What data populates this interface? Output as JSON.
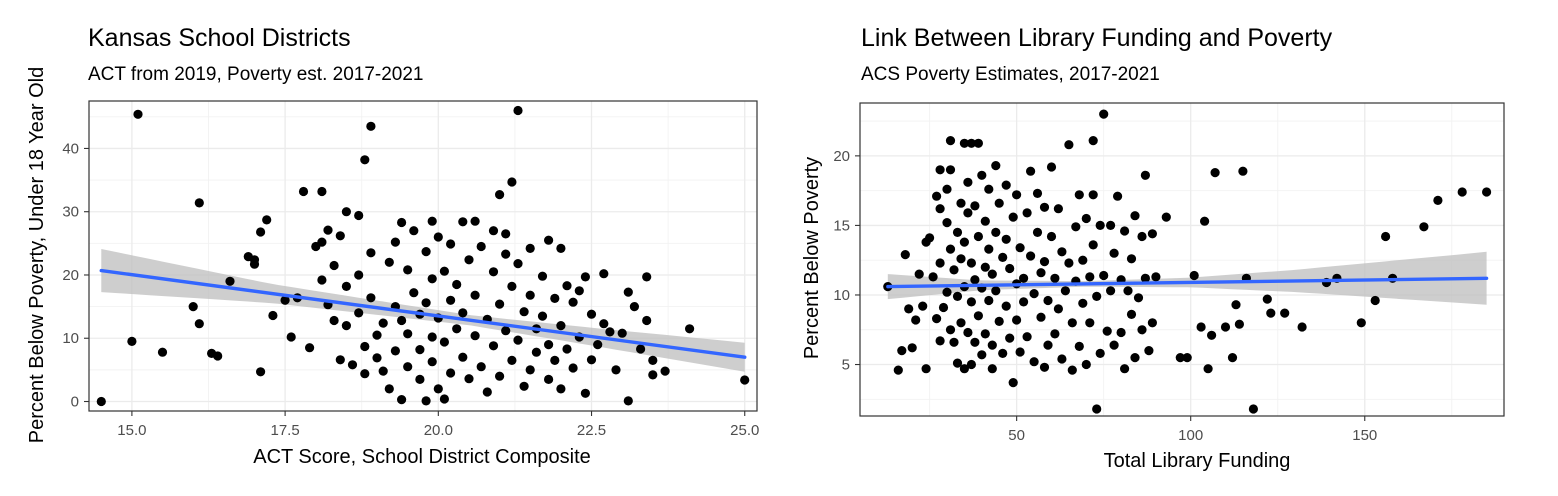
{
  "chart_data": [
    {
      "type": "scatter",
      "title": "Kansas School Districts",
      "subtitle": "ACT from 2019, Poverty est. 2017-2021",
      "xlabel": "ACT Score, School District Composite",
      "ylabel": "Percent Below Poverty, Under 18 Year Old",
      "xlim": [
        14.3,
        25.2
      ],
      "ylim": [
        -1.5,
        47.5
      ],
      "xticks": [
        15.0,
        17.5,
        20.0,
        22.5,
        25.0
      ],
      "xtick_labels": [
        "15.0",
        "17.5",
        "20.0",
        "22.5",
        "25.0"
      ],
      "yticks": [
        0,
        10,
        20,
        30,
        40
      ],
      "ytick_labels": [
        "0",
        "10",
        "20",
        "30",
        "40"
      ],
      "grid": true,
      "point_color": "#000000",
      "trend_color": "#3366FF",
      "band_color": "#BEBEBE",
      "trend": {
        "x": [
          14.5,
          25.0
        ],
        "y": [
          20.7,
          7.0
        ]
      },
      "band_halfwidth": {
        "x": [
          14.5,
          17.3,
          20.5,
          22.5,
          25.0
        ],
        "half": [
          3.4,
          1.5,
          0.8,
          1.4,
          2.3
        ]
      },
      "points": [
        [
          14.5,
          0
        ],
        [
          15.0,
          9.5
        ],
        [
          15.1,
          45.4
        ],
        [
          15.5,
          7.8
        ],
        [
          16.0,
          15.0
        ],
        [
          16.1,
          31.4
        ],
        [
          16.1,
          12.3
        ],
        [
          16.3,
          7.6
        ],
        [
          16.4,
          7.2
        ],
        [
          16.6,
          19.0
        ],
        [
          16.9,
          22.9
        ],
        [
          17.0,
          22.4
        ],
        [
          17.0,
          21.7
        ],
        [
          17.1,
          26.8
        ],
        [
          17.1,
          4.7
        ],
        [
          17.2,
          28.7
        ],
        [
          17.3,
          13.6
        ],
        [
          17.5,
          16.0
        ],
        [
          17.6,
          10.2
        ],
        [
          17.7,
          16.4
        ],
        [
          17.8,
          33.2
        ],
        [
          17.9,
          8.5
        ],
        [
          18.0,
          24.5
        ],
        [
          18.1,
          33.2
        ],
        [
          18.1,
          25.2
        ],
        [
          18.1,
          19.2
        ],
        [
          18.2,
          27.1
        ],
        [
          18.2,
          15.3
        ],
        [
          18.3,
          21.5
        ],
        [
          18.3,
          12.8
        ],
        [
          18.4,
          26.2
        ],
        [
          18.4,
          6.6
        ],
        [
          18.5,
          30.0
        ],
        [
          18.5,
          18.2
        ],
        [
          18.5,
          12.0
        ],
        [
          18.6,
          5.8
        ],
        [
          18.7,
          20.0
        ],
        [
          18.7,
          29.4
        ],
        [
          18.7,
          14.0
        ],
        [
          18.8,
          38.2
        ],
        [
          18.8,
          8.7
        ],
        [
          18.8,
          4.4
        ],
        [
          18.9,
          43.5
        ],
        [
          18.9,
          23.5
        ],
        [
          18.9,
          16.4
        ],
        [
          19.0,
          10.5
        ],
        [
          19.0,
          6.9
        ],
        [
          19.1,
          12.4
        ],
        [
          19.1,
          4.8
        ],
        [
          19.2,
          22.0
        ],
        [
          19.2,
          2.0
        ],
        [
          19.3,
          25.2
        ],
        [
          19.3,
          15.0
        ],
        [
          19.3,
          8.0
        ],
        [
          19.4,
          28.3
        ],
        [
          19.4,
          12.8
        ],
        [
          19.4,
          0.3
        ],
        [
          19.5,
          20.8
        ],
        [
          19.5,
          10.7
        ],
        [
          19.5,
          5.5
        ],
        [
          19.6,
          17.2
        ],
        [
          19.6,
          27.0
        ],
        [
          19.7,
          13.8
        ],
        [
          19.7,
          8.2
        ],
        [
          19.7,
          3.5
        ],
        [
          19.8,
          23.7
        ],
        [
          19.8,
          15.6
        ],
        [
          19.8,
          0.1
        ],
        [
          19.9,
          28.5
        ],
        [
          19.9,
          19.4
        ],
        [
          19.9,
          10.2
        ],
        [
          19.9,
          6.3
        ],
        [
          20.0,
          26.0
        ],
        [
          20.0,
          13.2
        ],
        [
          20.0,
          2.0
        ],
        [
          20.1,
          20.6
        ],
        [
          20.1,
          9.4
        ],
        [
          20.1,
          0.4
        ],
        [
          20.2,
          24.9
        ],
        [
          20.2,
          16.0
        ],
        [
          20.2,
          4.5
        ],
        [
          20.3,
          18.5
        ],
        [
          20.3,
          11.5
        ],
        [
          20.4,
          28.4
        ],
        [
          20.4,
          14.0
        ],
        [
          20.4,
          7.0
        ],
        [
          20.5,
          22.4
        ],
        [
          20.5,
          3.6
        ],
        [
          20.6,
          28.5
        ],
        [
          20.6,
          16.8
        ],
        [
          20.6,
          10.4
        ],
        [
          20.7,
          24.5
        ],
        [
          20.7,
          5.5
        ],
        [
          20.8,
          13.0
        ],
        [
          20.8,
          1.5
        ],
        [
          20.9,
          20.5
        ],
        [
          20.9,
          8.8
        ],
        [
          20.9,
          27.0
        ],
        [
          21.0,
          32.7
        ],
        [
          21.0,
          15.4
        ],
        [
          21.0,
          4.0
        ],
        [
          21.1,
          23.3
        ],
        [
          21.1,
          11.2
        ],
        [
          21.1,
          26.5
        ],
        [
          21.2,
          18.2
        ],
        [
          21.2,
          6.5
        ],
        [
          21.2,
          34.7
        ],
        [
          21.3,
          46.0
        ],
        [
          21.3,
          21.8
        ],
        [
          21.3,
          9.7
        ],
        [
          21.4,
          14.2
        ],
        [
          21.4,
          2.4
        ],
        [
          21.5,
          24.2
        ],
        [
          21.5,
          16.8
        ],
        [
          21.5,
          5.0
        ],
        [
          21.6,
          11.5
        ],
        [
          21.6,
          7.8
        ],
        [
          21.7,
          19.8
        ],
        [
          21.7,
          13.5
        ],
        [
          21.8,
          25.5
        ],
        [
          21.8,
          9.0
        ],
        [
          21.8,
          3.5
        ],
        [
          21.9,
          16.3
        ],
        [
          21.9,
          6.5
        ],
        [
          22.0,
          24.2
        ],
        [
          22.0,
          12.0
        ],
        [
          22.0,
          2.0
        ],
        [
          22.1,
          18.3
        ],
        [
          22.1,
          8.3
        ],
        [
          22.2,
          15.7
        ],
        [
          22.2,
          5.3
        ],
        [
          22.3,
          17.5
        ],
        [
          22.3,
          10.2
        ],
        [
          22.4,
          19.7
        ],
        [
          22.4,
          1.3
        ],
        [
          22.5,
          13.8
        ],
        [
          22.5,
          6.6
        ],
        [
          22.6,
          9.0
        ],
        [
          22.7,
          20.2
        ],
        [
          22.7,
          12.3
        ],
        [
          22.8,
          11.0
        ],
        [
          22.9,
          5.0
        ],
        [
          23.0,
          10.8
        ],
        [
          23.1,
          17.3
        ],
        [
          23.1,
          0.1
        ],
        [
          23.2,
          15.0
        ],
        [
          23.3,
          8.3
        ],
        [
          23.4,
          19.7
        ],
        [
          23.4,
          12.8
        ],
        [
          23.5,
          6.5
        ],
        [
          23.5,
          4.2
        ],
        [
          23.7,
          4.8
        ],
        [
          24.1,
          11.5
        ],
        [
          25.0,
          3.4
        ]
      ]
    },
    {
      "type": "scatter",
      "title": "Link Between Library Funding and Poverty",
      "subtitle": "ACS Poverty Estimates, 2017-2021",
      "xlabel": "Total Library Funding",
      "ylabel": "Percent Below Poverty",
      "xlim": [
        5,
        190
      ],
      "ylim": [
        1.3,
        23.8
      ],
      "xticks": [
        50,
        100,
        150
      ],
      "xtick_labels": [
        "50",
        "100",
        "150"
      ],
      "yticks": [
        5,
        10,
        15,
        20
      ],
      "ytick_labels": [
        "5",
        "10",
        "15",
        "20"
      ],
      "grid": true,
      "point_color": "#000000",
      "trend_color": "#3366FF",
      "band_color": "#BEBEBE",
      "trend": {
        "x": [
          13,
          185
        ],
        "y": [
          10.6,
          11.2
        ]
      },
      "band_halfwidth": {
        "x": [
          13,
          40,
          70,
          100,
          130,
          160,
          185
        ],
        "half": [
          0.9,
          0.35,
          0.2,
          0.35,
          0.8,
          1.4,
          1.9
        ]
      },
      "points": [
        [
          13,
          10.6
        ],
        [
          16,
          4.6
        ],
        [
          17,
          6.0
        ],
        [
          18,
          12.9
        ],
        [
          19,
          9.0
        ],
        [
          20,
          6.2
        ],
        [
          21,
          8.2
        ],
        [
          22,
          11.5
        ],
        [
          23,
          9.2
        ],
        [
          24,
          13.8
        ],
        [
          24,
          4.7
        ],
        [
          25,
          14.1
        ],
        [
          26,
          11.3
        ],
        [
          27,
          17.1
        ],
        [
          27,
          8.3
        ],
        [
          28,
          19.0
        ],
        [
          28,
          16.2
        ],
        [
          28,
          12.3
        ],
        [
          28,
          6.7
        ],
        [
          29,
          9.1
        ],
        [
          30,
          17.6
        ],
        [
          30,
          15.2
        ],
        [
          30,
          10.2
        ],
        [
          31,
          21.1
        ],
        [
          31,
          19.0
        ],
        [
          31,
          13.3
        ],
        [
          31,
          7.5
        ],
        [
          32,
          11.8
        ],
        [
          32,
          6.6
        ],
        [
          33,
          14.5
        ],
        [
          33,
          9.9
        ],
        [
          33,
          5.1
        ],
        [
          34,
          16.6
        ],
        [
          34,
          12.6
        ],
        [
          34,
          8.0
        ],
        [
          35,
          20.9
        ],
        [
          35,
          13.8
        ],
        [
          35,
          10.6
        ],
        [
          35,
          4.7
        ],
        [
          36,
          18.1
        ],
        [
          36,
          15.9
        ],
        [
          36,
          7.3
        ],
        [
          37,
          20.9
        ],
        [
          37,
          12.3
        ],
        [
          37,
          9.5
        ],
        [
          37,
          5.0
        ],
        [
          38,
          16.4
        ],
        [
          38,
          11.1
        ],
        [
          38,
          6.6
        ],
        [
          39,
          20.9
        ],
        [
          39,
          14.2
        ],
        [
          39,
          8.5
        ],
        [
          40,
          18.6
        ],
        [
          40,
          10.5
        ],
        [
          40,
          5.7
        ],
        [
          41,
          15.3
        ],
        [
          41,
          12.0
        ],
        [
          41,
          7.2
        ],
        [
          42,
          17.6
        ],
        [
          42,
          13.3
        ],
        [
          42,
          9.6
        ],
        [
          43,
          11.5
        ],
        [
          43,
          6.4
        ],
        [
          43,
          4.7
        ],
        [
          44,
          19.3
        ],
        [
          44,
          14.5
        ],
        [
          44,
          10.3
        ],
        [
          45,
          16.6
        ],
        [
          45,
          8.1
        ],
        [
          46,
          12.7
        ],
        [
          46,
          5.8
        ],
        [
          47,
          17.9
        ],
        [
          47,
          14.0
        ],
        [
          47,
          9.2
        ],
        [
          48,
          11.9
        ],
        [
          48,
          6.9
        ],
        [
          49,
          15.6
        ],
        [
          49,
          3.7
        ],
        [
          50,
          17.2
        ],
        [
          50,
          10.8
        ],
        [
          50,
          8.2
        ],
        [
          51,
          13.4
        ],
        [
          51,
          5.9
        ],
        [
          52,
          11.2
        ],
        [
          52,
          9.5
        ],
        [
          53,
          15.9
        ],
        [
          53,
          7.0
        ],
        [
          54,
          18.9
        ],
        [
          54,
          12.8
        ],
        [
          55,
          10.1
        ],
        [
          55,
          5.2
        ],
        [
          56,
          17.3
        ],
        [
          56,
          14.5
        ],
        [
          57,
          11.6
        ],
        [
          57,
          8.4
        ],
        [
          58,
          16.3
        ],
        [
          58,
          12.4
        ],
        [
          58,
          4.8
        ],
        [
          59,
          9.6
        ],
        [
          59,
          6.4
        ],
        [
          60,
          19.2
        ],
        [
          60,
          14.2
        ],
        [
          61,
          11.2
        ],
        [
          61,
          7.2
        ],
        [
          62,
          16.2
        ],
        [
          62,
          9.0
        ],
        [
          63,
          13.1
        ],
        [
          63,
          5.4
        ],
        [
          64,
          10.3
        ],
        [
          65,
          20.8
        ],
        [
          65,
          12.3
        ],
        [
          66,
          8.0
        ],
        [
          66,
          4.6
        ],
        [
          67,
          14.9
        ],
        [
          67,
          11.0
        ],
        [
          68,
          17.2
        ],
        [
          68,
          6.3
        ],
        [
          69,
          12.5
        ],
        [
          69,
          9.4
        ],
        [
          70,
          15.5
        ],
        [
          70,
          5.0
        ],
        [
          71,
          11.3
        ],
        [
          71,
          8.0
        ],
        [
          72,
          17.2
        ],
        [
          72,
          21.1
        ],
        [
          72,
          13.6
        ],
        [
          73,
          1.8
        ],
        [
          73,
          9.9
        ],
        [
          74,
          15.0
        ],
        [
          74,
          5.8
        ],
        [
          75,
          23.0
        ],
        [
          75,
          11.4
        ],
        [
          76,
          7.4
        ],
        [
          77,
          15.0
        ],
        [
          77,
          10.3
        ],
        [
          78,
          13.0
        ],
        [
          78,
          6.4
        ],
        [
          79,
          17.1
        ],
        [
          80,
          11.1
        ],
        [
          80,
          7.3
        ],
        [
          81,
          14.6
        ],
        [
          81,
          4.7
        ],
        [
          82,
          10.3
        ],
        [
          83,
          12.6
        ],
        [
          83,
          8.6
        ],
        [
          84,
          15.7
        ],
        [
          84,
          5.5
        ],
        [
          85,
          9.8
        ],
        [
          86,
          14.2
        ],
        [
          86,
          7.5
        ],
        [
          87,
          18.6
        ],
        [
          87,
          11.2
        ],
        [
          88,
          6.0
        ],
        [
          89,
          14.4
        ],
        [
          89,
          8.0
        ],
        [
          90,
          11.3
        ],
        [
          93,
          15.6
        ],
        [
          97,
          5.5
        ],
        [
          99,
          5.5
        ],
        [
          101,
          11.4
        ],
        [
          103,
          7.7
        ],
        [
          104,
          15.3
        ],
        [
          105,
          4.7
        ],
        [
          106,
          7.1
        ],
        [
          107,
          18.8
        ],
        [
          110,
          7.7
        ],
        [
          112,
          5.5
        ],
        [
          113,
          9.3
        ],
        [
          114,
          7.9
        ],
        [
          115,
          18.9
        ],
        [
          116,
          11.2
        ],
        [
          118,
          1.8
        ],
        [
          122,
          9.7
        ],
        [
          123,
          8.7
        ],
        [
          127,
          8.7
        ],
        [
          132,
          7.7
        ],
        [
          139,
          10.9
        ],
        [
          142,
          11.2
        ],
        [
          149,
          8.0
        ],
        [
          153,
          9.6
        ],
        [
          156,
          14.2
        ],
        [
          158,
          11.2
        ],
        [
          167,
          14.9
        ],
        [
          171,
          16.8
        ],
        [
          178,
          17.4
        ],
        [
          185,
          17.4
        ]
      ]
    }
  ]
}
